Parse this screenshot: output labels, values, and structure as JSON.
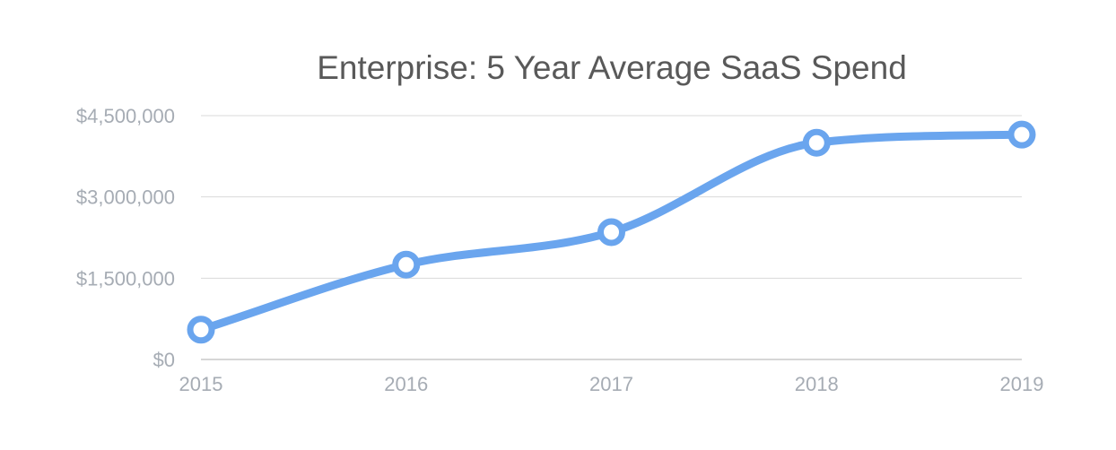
{
  "chart_data": {
    "type": "line",
    "title": "Enterprise: 5 Year Average SaaS Spend",
    "xlabel": "",
    "ylabel": "",
    "categories": [
      "2015",
      "2016",
      "2017",
      "2018",
      "2019"
    ],
    "series": [
      {
        "values": [
          550000,
          1750000,
          2350000,
          4000000,
          4150000
        ]
      }
    ],
    "ylim": [
      0,
      4500000
    ],
    "yticks": [
      0,
      1500000,
      3000000,
      4500000
    ],
    "ytick_labels": [
      "$0",
      "$1,500,000",
      "$3,000,000",
      "$4,500,000"
    ],
    "grid": true,
    "smooth": true,
    "legend": "none",
    "colors": {
      "series": "#6aa5ee",
      "grid": "#d9d9d9",
      "title": "#595959",
      "ticks": "#a6acb4"
    }
  }
}
